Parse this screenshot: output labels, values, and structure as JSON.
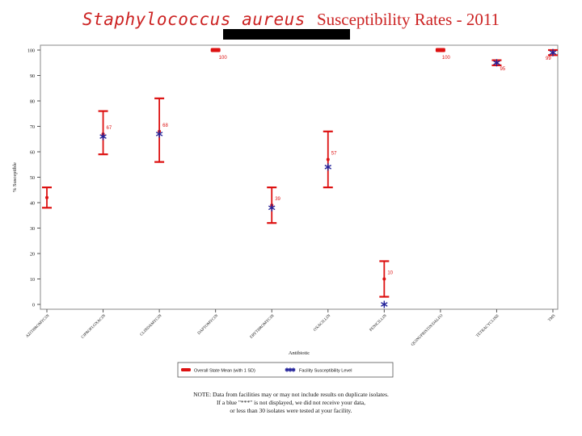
{
  "title": {
    "italic": "Staphylococcus aureus",
    "rest": "Susceptibility Rates - 2011"
  },
  "note": {
    "line1": "NOTE: Data from facilities may or may not include results on duplicate isolates.",
    "line2": "If a blue \"***\" is not displayed, we did not receive your data,",
    "line3": "or less than 30 isolates were tested at your facility."
  },
  "chart_data": {
    "type": "scatter",
    "xlabel": "Antibiotic",
    "ylabel": "% Susceptible",
    "ylim": [
      0,
      100
    ],
    "yticks": [
      0,
      10,
      20,
      30,
      40,
      50,
      60,
      70,
      80,
      90,
      100
    ],
    "categories": [
      "AZITHROMYCIN",
      "CIPROFLOXACIN",
      "CLINDAMYCIN",
      "DAPTOMYCIN",
      "ERYTHROMYCIN",
      "OXACILLIN",
      "PENICILLIN",
      "QUINUPRISTIN/DALFO",
      "TETRACYCLINE",
      "TMS"
    ],
    "series": [
      {
        "name": "Overall State Mean (with 1 SD)",
        "color": "#dd1111",
        "values": [
          42,
          67,
          68,
          100,
          39,
          57,
          10,
          100,
          95,
          99
        ],
        "lower": [
          38,
          59,
          56,
          100,
          32,
          46,
          3,
          100,
          94,
          98
        ],
        "upper": [
          46,
          76,
          81,
          100,
          46,
          68,
          17,
          100,
          96,
          100
        ]
      },
      {
        "name": "Facility Susceptibility Level",
        "color": "#22229a",
        "values": [
          null,
          66,
          67,
          null,
          38,
          54,
          0,
          null,
          95,
          99
        ]
      }
    ],
    "data_labels": [
      {
        "category": "CIPROFLOXACIN",
        "text": "67"
      },
      {
        "category": "CLINDAMYCIN",
        "text": "68"
      },
      {
        "category": "DAPTOMYCIN",
        "text": "100"
      },
      {
        "category": "ERYTHROMYCIN",
        "text": "39"
      },
      {
        "category": "OXACILLIN",
        "text": "57"
      },
      {
        "category": "PENICILLIN",
        "text": "10"
      },
      {
        "category": "QUINUPRISTIN/DALFO",
        "text": "100"
      },
      {
        "category": "TETRACYCLINE",
        "text": "95"
      },
      {
        "category": "TMS",
        "text": "99"
      }
    ],
    "legend": {
      "placement": "bottom",
      "items": [
        {
          "label": "Overall State Mean (with 1 SD)",
          "marker": "red-dash"
        },
        {
          "label": "Facility Susceptibility Level",
          "marker": "blue-star"
        }
      ]
    }
  }
}
